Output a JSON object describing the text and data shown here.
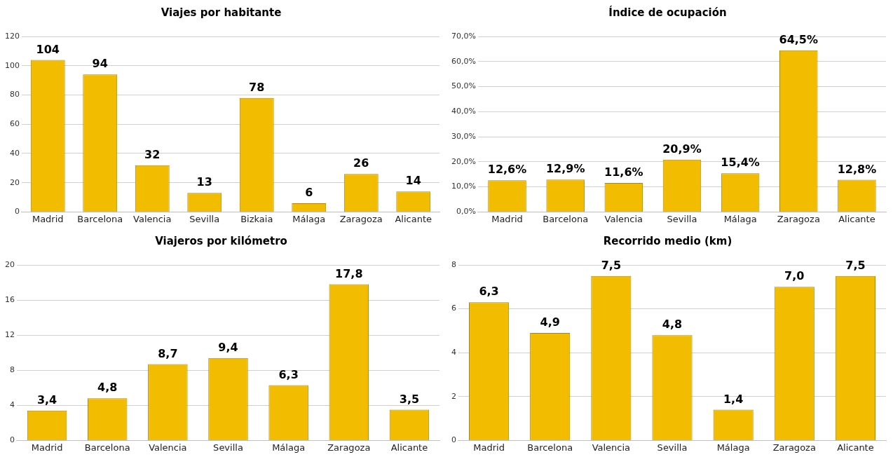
{
  "chart_data": [
    {
      "type": "bar",
      "title": "Viajes por habitante",
      "categories": [
        "Madrid",
        "Barcelona",
        "Valencia",
        "Sevilla",
        "Bizkaia",
        "Málaga",
        "Zaragoza",
        "Alicante"
      ],
      "values": [
        104,
        94,
        32,
        13,
        78,
        6,
        26,
        14
      ],
      "color": "#f2bc00",
      "ylim": [
        0,
        120
      ],
      "yticks": [
        0,
        20,
        40,
        60,
        80,
        100,
        120
      ],
      "grid": "y",
      "data_labels": true
    },
    {
      "type": "bar",
      "title": "Índice de ocupación",
      "categories": [
        "Madrid",
        "Barcelona",
        "Valencia",
        "Sevilla",
        "Málaga",
        "Zaragoza",
        "Alicante"
      ],
      "values": [
        12.6,
        12.9,
        11.6,
        20.9,
        15.4,
        64.5,
        12.8
      ],
      "value_labels": [
        "12,6%",
        "12,9%",
        "11,6%",
        "20,9%",
        "15,4%",
        "64,5%",
        "12,8%"
      ],
      "color": "#f2bc00",
      "ylim": [
        0,
        70
      ],
      "yticks": [
        {
          "value": 0,
          "label": "0,0%"
        },
        {
          "value": 10,
          "label": "10,0%"
        },
        {
          "value": 20,
          "label": "20,0%"
        },
        {
          "value": 30,
          "label": "30,0%"
        },
        {
          "value": 40,
          "label": "40,0%"
        },
        {
          "value": 50,
          "label": "50,0%"
        },
        {
          "value": 60,
          "label": "60,0%"
        },
        {
          "value": 70,
          "label": "70,0%"
        }
      ],
      "grid": "y"
    },
    {
      "type": "bar",
      "title": "Viajeros por kilómetro",
      "categories": [
        "Madrid",
        "Barcelona",
        "Valencia",
        "Sevilla",
        "Málaga",
        "Zaragoza",
        "Alicante"
      ],
      "values": [
        3.4,
        4.8,
        8.7,
        9.4,
        6.3,
        17.8,
        3.5
      ],
      "value_labels": [
        "3,4",
        "4,8",
        "8,7",
        "9,4",
        "6,3",
        "17,8",
        "3,5"
      ],
      "color": "#f2bc00",
      "ylim": [
        0,
        20
      ],
      "yticks": [
        0,
        4,
        8,
        12,
        16,
        20
      ],
      "grid": "y"
    },
    {
      "type": "bar",
      "title": "Recorrido medio (km)",
      "categories": [
        "Madrid",
        "Barcelona",
        "Valencia",
        "Sevilla",
        "Málaga",
        "Zaragoza",
        "Alicante"
      ],
      "values": [
        6.3,
        4.9,
        7.5,
        4.8,
        1.4,
        7.0,
        7.5
      ],
      "value_labels": [
        "6,3",
        "4,9",
        "7,5",
        "4,8",
        "1,4",
        "7,0",
        "7,5"
      ],
      "color": "#f2bc00",
      "ylim": [
        0,
        8
      ],
      "yticks": [
        0,
        2,
        4,
        6,
        8
      ],
      "grid": "y"
    }
  ]
}
